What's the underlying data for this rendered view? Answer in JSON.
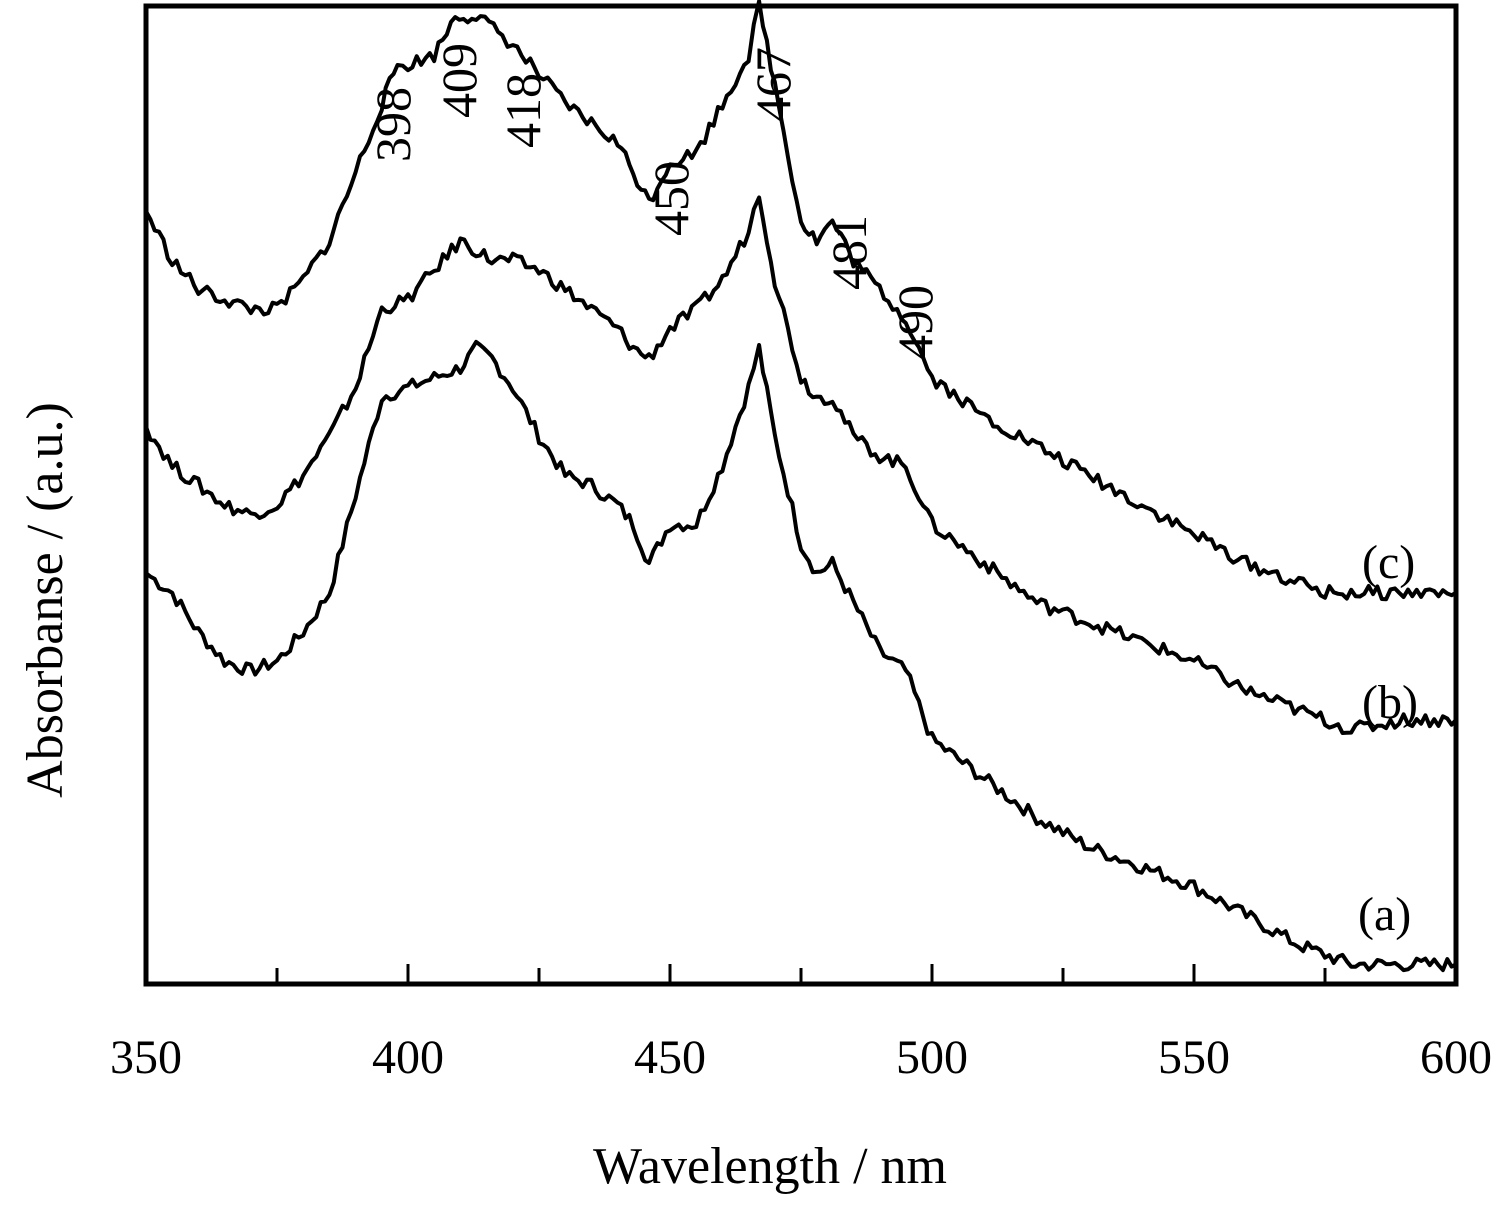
{
  "chart_data": {
    "type": "line",
    "xlabel": "Wavelength / nm",
    "ylabel": "Absorbanse / (a.u.)",
    "xlim": [
      350,
      600
    ],
    "ylim": [
      0,
      1
    ],
    "x_ticks": [
      "350",
      "400",
      "450",
      "500",
      "550",
      "600"
    ],
    "y_ticks_shown": false,
    "grid": false,
    "legend": "none",
    "line_color": "#000000",
    "series": [
      {
        "name": "(a)",
        "points": [
          [
            350,
            0.42
          ],
          [
            355,
            0.4
          ],
          [
            360,
            0.36
          ],
          [
            365,
            0.33
          ],
          [
            370,
            0.32
          ],
          [
            375,
            0.33
          ],
          [
            380,
            0.36
          ],
          [
            385,
            0.4
          ],
          [
            390,
            0.5
          ],
          [
            395,
            0.6
          ],
          [
            400,
            0.61
          ],
          [
            405,
            0.62
          ],
          [
            410,
            0.63
          ],
          [
            413,
            0.65
          ],
          [
            416,
            0.64
          ],
          [
            420,
            0.61
          ],
          [
            425,
            0.56
          ],
          [
            430,
            0.52
          ],
          [
            435,
            0.51
          ],
          [
            440,
            0.49
          ],
          [
            443,
            0.47
          ],
          [
            446,
            0.43
          ],
          [
            450,
            0.47
          ],
          [
            455,
            0.47
          ],
          [
            460,
            0.53
          ],
          [
            465,
            0.61
          ],
          [
            467,
            0.65
          ],
          [
            470,
            0.56
          ],
          [
            475,
            0.45
          ],
          [
            478,
            0.42
          ],
          [
            481,
            0.43
          ],
          [
            485,
            0.39
          ],
          [
            490,
            0.34
          ],
          [
            495,
            0.32
          ],
          [
            500,
            0.25
          ],
          [
            510,
            0.21
          ],
          [
            520,
            0.17
          ],
          [
            530,
            0.14
          ],
          [
            540,
            0.12
          ],
          [
            550,
            0.1
          ],
          [
            560,
            0.07
          ],
          [
            570,
            0.04
          ],
          [
            575,
            0.03
          ],
          [
            580,
            0.02
          ],
          [
            590,
            0.02
          ],
          [
            600,
            0.02
          ]
        ]
      },
      {
        "name": "(b)",
        "points": [
          [
            350,
            0.57
          ],
          [
            355,
            0.53
          ],
          [
            360,
            0.51
          ],
          [
            365,
            0.49
          ],
          [
            370,
            0.48
          ],
          [
            375,
            0.49
          ],
          [
            380,
            0.52
          ],
          [
            385,
            0.56
          ],
          [
            390,
            0.61
          ],
          [
            395,
            0.69
          ],
          [
            400,
            0.7
          ],
          [
            405,
            0.73
          ],
          [
            410,
            0.76
          ],
          [
            413,
            0.75
          ],
          [
            416,
            0.74
          ],
          [
            420,
            0.74
          ],
          [
            425,
            0.73
          ],
          [
            430,
            0.71
          ],
          [
            435,
            0.69
          ],
          [
            440,
            0.67
          ],
          [
            443,
            0.65
          ],
          [
            446,
            0.64
          ],
          [
            450,
            0.67
          ],
          [
            455,
            0.69
          ],
          [
            460,
            0.72
          ],
          [
            465,
            0.77
          ],
          [
            467,
            0.81
          ],
          [
            470,
            0.72
          ],
          [
            475,
            0.62
          ],
          [
            478,
            0.6
          ],
          [
            481,
            0.6
          ],
          [
            485,
            0.56
          ],
          [
            490,
            0.54
          ],
          [
            495,
            0.53
          ],
          [
            500,
            0.47
          ],
          [
            510,
            0.43
          ],
          [
            520,
            0.39
          ],
          [
            530,
            0.37
          ],
          [
            540,
            0.35
          ],
          [
            550,
            0.33
          ],
          [
            560,
            0.3
          ],
          [
            570,
            0.28
          ],
          [
            575,
            0.27
          ],
          [
            580,
            0.26
          ],
          [
            590,
            0.27
          ],
          [
            600,
            0.27
          ]
        ]
      },
      {
        "name": "(c)",
        "points": [
          [
            350,
            0.79
          ],
          [
            355,
            0.74
          ],
          [
            360,
            0.71
          ],
          [
            365,
            0.7
          ],
          [
            370,
            0.69
          ],
          [
            375,
            0.69
          ],
          [
            380,
            0.72
          ],
          [
            385,
            0.76
          ],
          [
            390,
            0.83
          ],
          [
            395,
            0.9
          ],
          [
            398,
            0.94
          ],
          [
            400,
            0.94
          ],
          [
            405,
            0.95
          ],
          [
            409,
            0.99
          ],
          [
            413,
            0.99
          ],
          [
            418,
            0.97
          ],
          [
            420,
            0.96
          ],
          [
            425,
            0.93
          ],
          [
            430,
            0.9
          ],
          [
            435,
            0.88
          ],
          [
            440,
            0.86
          ],
          [
            443,
            0.83
          ],
          [
            446,
            0.8
          ],
          [
            450,
            0.84
          ],
          [
            455,
            0.85
          ],
          [
            460,
            0.9
          ],
          [
            465,
            0.95
          ],
          [
            467,
            1.0
          ],
          [
            470,
            0.92
          ],
          [
            475,
            0.78
          ],
          [
            478,
            0.76
          ],
          [
            481,
            0.78
          ],
          [
            485,
            0.74
          ],
          [
            490,
            0.71
          ],
          [
            495,
            0.68
          ],
          [
            500,
            0.62
          ],
          [
            510,
            0.58
          ],
          [
            520,
            0.55
          ],
          [
            530,
            0.52
          ],
          [
            540,
            0.49
          ],
          [
            550,
            0.46
          ],
          [
            560,
            0.43
          ],
          [
            570,
            0.41
          ],
          [
            575,
            0.4
          ],
          [
            580,
            0.4
          ],
          [
            590,
            0.4
          ],
          [
            600,
            0.4
          ]
        ]
      }
    ],
    "annotations": [
      "398",
      "409",
      "418",
      "450",
      "467",
      "481",
      "490"
    ]
  }
}
